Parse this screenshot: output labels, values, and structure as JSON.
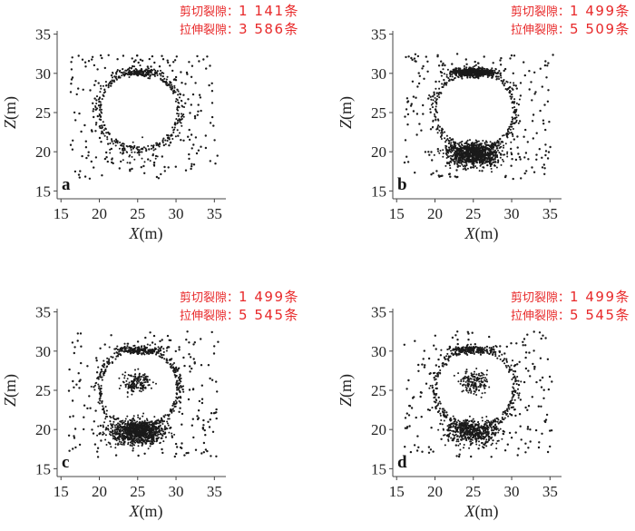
{
  "chart_data": [
    {
      "type": "scatter",
      "panel": "a",
      "xlabel": "X(m)",
      "ylabel": "Z(m)",
      "xlim": [
        14.5,
        36.5
      ],
      "ylim": [
        14,
        36
      ],
      "xticks": [
        "15",
        "20",
        "25",
        "30",
        "35"
      ],
      "yticks": [
        "15",
        "20",
        "25",
        "30",
        "35"
      ],
      "annotations": [
        {
          "label": "剪切裂隙",
          "value": "1 141条"
        },
        {
          "label": "拉伸裂隙",
          "value": "3 586条"
        }
      ],
      "shear_cracks": 1141,
      "tensile_cracks": 3586,
      "cavity_filled": false,
      "floor_density": "low",
      "roof_density": "medium"
    },
    {
      "type": "scatter",
      "panel": "b",
      "xlabel": "X(m)",
      "ylabel": "Z(m)",
      "xlim": [
        14.5,
        36.5
      ],
      "ylim": [
        14,
        36
      ],
      "xticks": [
        "15",
        "20",
        "25",
        "30",
        "35"
      ],
      "yticks": [
        "15",
        "20",
        "25",
        "30",
        "35"
      ],
      "annotations": [
        {
          "label": "剪切裂隙",
          "value": "1 499条"
        },
        {
          "label": "拉伸裂隙",
          "value": "5 509条"
        }
      ],
      "shear_cracks": 1499,
      "tensile_cracks": 5509,
      "cavity_filled": false,
      "floor_density": "very-high",
      "roof_density": "high"
    },
    {
      "type": "scatter",
      "panel": "c",
      "xlabel": "X(m)",
      "ylabel": "Z(m)",
      "xlim": [
        14.5,
        36.5
      ],
      "ylim": [
        14,
        36
      ],
      "xticks": [
        "15",
        "20",
        "25",
        "30",
        "35"
      ],
      "yticks": [
        "15",
        "20",
        "25",
        "30",
        "35"
      ],
      "annotations": [
        {
          "label": "剪切裂隙",
          "value": "1 499条"
        },
        {
          "label": "拉伸裂隙",
          "value": "5 545条"
        }
      ],
      "shear_cracks": 1499,
      "tensile_cracks": 5545,
      "cavity_filled": true,
      "floor_density": "very-high",
      "roof_density": "medium"
    },
    {
      "type": "scatter",
      "panel": "d",
      "xlabel": "X(m)",
      "ylabel": "Z(m)",
      "xlim": [
        14.5,
        36.5
      ],
      "ylim": [
        14,
        36
      ],
      "xticks": [
        "15",
        "20",
        "25",
        "30",
        "35"
      ],
      "yticks": [
        "15",
        "20",
        "25",
        "30",
        "35"
      ],
      "annotations": [
        {
          "label": "剪切裂隙",
          "value": "1 499条"
        },
        {
          "label": "拉伸裂隙",
          "value": "5 545条"
        }
      ],
      "shear_cracks": 1499,
      "tensile_cracks": 5545,
      "cavity_filled": true,
      "floor_density": "high",
      "roof_density": "medium"
    }
  ],
  "colors": {
    "annotation": "#e8292a",
    "points": "#1a1a1a",
    "frame": "#333333"
  }
}
